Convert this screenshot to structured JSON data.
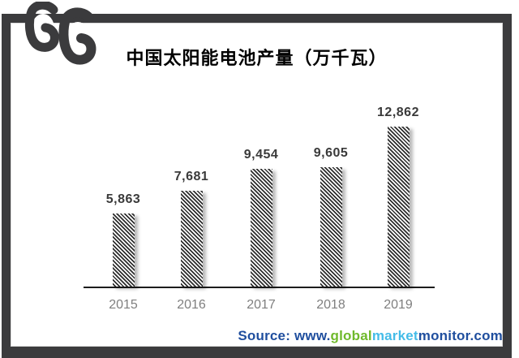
{
  "brand": {
    "logo_name": "double-curl-logo",
    "logo_color": "#3b3b3d"
  },
  "frame": {
    "color": "#3b3b3d",
    "inner_edge_color": "#d9d9d9"
  },
  "chart_data": {
    "type": "bar",
    "title": "中国太阳能电池产量（万千瓦）",
    "categories": [
      "2015",
      "2016",
      "2017",
      "2018",
      "2019"
    ],
    "values": [
      5863,
      7681,
      9454,
      9605,
      12862
    ],
    "value_labels": [
      "5,863",
      "7,681",
      "9,454",
      "9,605",
      "12,862"
    ],
    "xlabel": "",
    "ylabel": "",
    "ylim": [
      0,
      13000
    ],
    "grid": false,
    "legend": false,
    "y_axis_visible": false,
    "bar_fill": "diagonal-hatch",
    "bar_hatch_color": "#2e2e2e",
    "value_label_color": "#3a3a3a",
    "tick_label_color": "#7f7f7f",
    "axis_color": "#1c1c1c"
  },
  "source": {
    "segments": [
      {
        "text": "Source: www.",
        "color": "#1f4e9e"
      },
      {
        "text": "global",
        "color": "#6fb92b"
      },
      {
        "text": "market",
        "color": "#44bce8"
      },
      {
        "text": "monitor.com",
        "color": "#1f4e9e"
      }
    ]
  }
}
